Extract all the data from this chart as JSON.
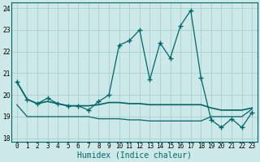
{
  "xlabel": "Humidex (Indice chaleur)",
  "background_color": "#cce8e8",
  "grid_color": "#aacfcf",
  "line_color": "#006666",
  "x_hours": [
    0,
    1,
    2,
    3,
    4,
    5,
    6,
    7,
    8,
    9,
    10,
    11,
    12,
    13,
    14,
    15,
    16,
    17,
    18,
    19,
    20,
    21,
    22,
    23
  ],
  "series_main": [
    20.6,
    19.8,
    19.6,
    19.85,
    19.6,
    19.5,
    19.5,
    19.3,
    19.7,
    20.0,
    22.3,
    22.5,
    23.0,
    20.7,
    22.4,
    21.7,
    23.2,
    23.9,
    20.8,
    18.85,
    18.5,
    18.9,
    18.5,
    19.2
  ],
  "series_upper": [
    20.6,
    19.8,
    19.6,
    19.7,
    19.6,
    19.5,
    19.5,
    19.5,
    19.55,
    19.65,
    19.65,
    19.6,
    19.6,
    19.55,
    19.55,
    19.55,
    19.55,
    19.55,
    19.55,
    19.4,
    19.3,
    19.3,
    19.3,
    19.4
  ],
  "series_lower": [
    19.55,
    19.0,
    19.0,
    19.0,
    19.0,
    19.0,
    19.0,
    19.0,
    18.9,
    18.9,
    18.9,
    18.85,
    18.85,
    18.8,
    18.8,
    18.8,
    18.8,
    18.8,
    18.8,
    19.0,
    19.0,
    19.0,
    19.0,
    19.35
  ],
  "ylim": [
    17.85,
    24.25
  ],
  "yticks": [
    18,
    19,
    20,
    21,
    22,
    23,
    24
  ],
  "xticks": [
    0,
    1,
    2,
    3,
    4,
    5,
    6,
    7,
    8,
    9,
    10,
    11,
    12,
    13,
    14,
    15,
    16,
    17,
    18,
    19,
    20,
    21,
    22,
    23
  ],
  "marker": "+",
  "markersize": 4.0,
  "linewidth_main": 0.9,
  "linewidth_upper": 1.2,
  "linewidth_lower": 0.9,
  "xlabel_fontsize": 7,
  "tick_fontsize": 5.5,
  "figsize": [
    3.2,
    2.0
  ],
  "dpi": 100
}
